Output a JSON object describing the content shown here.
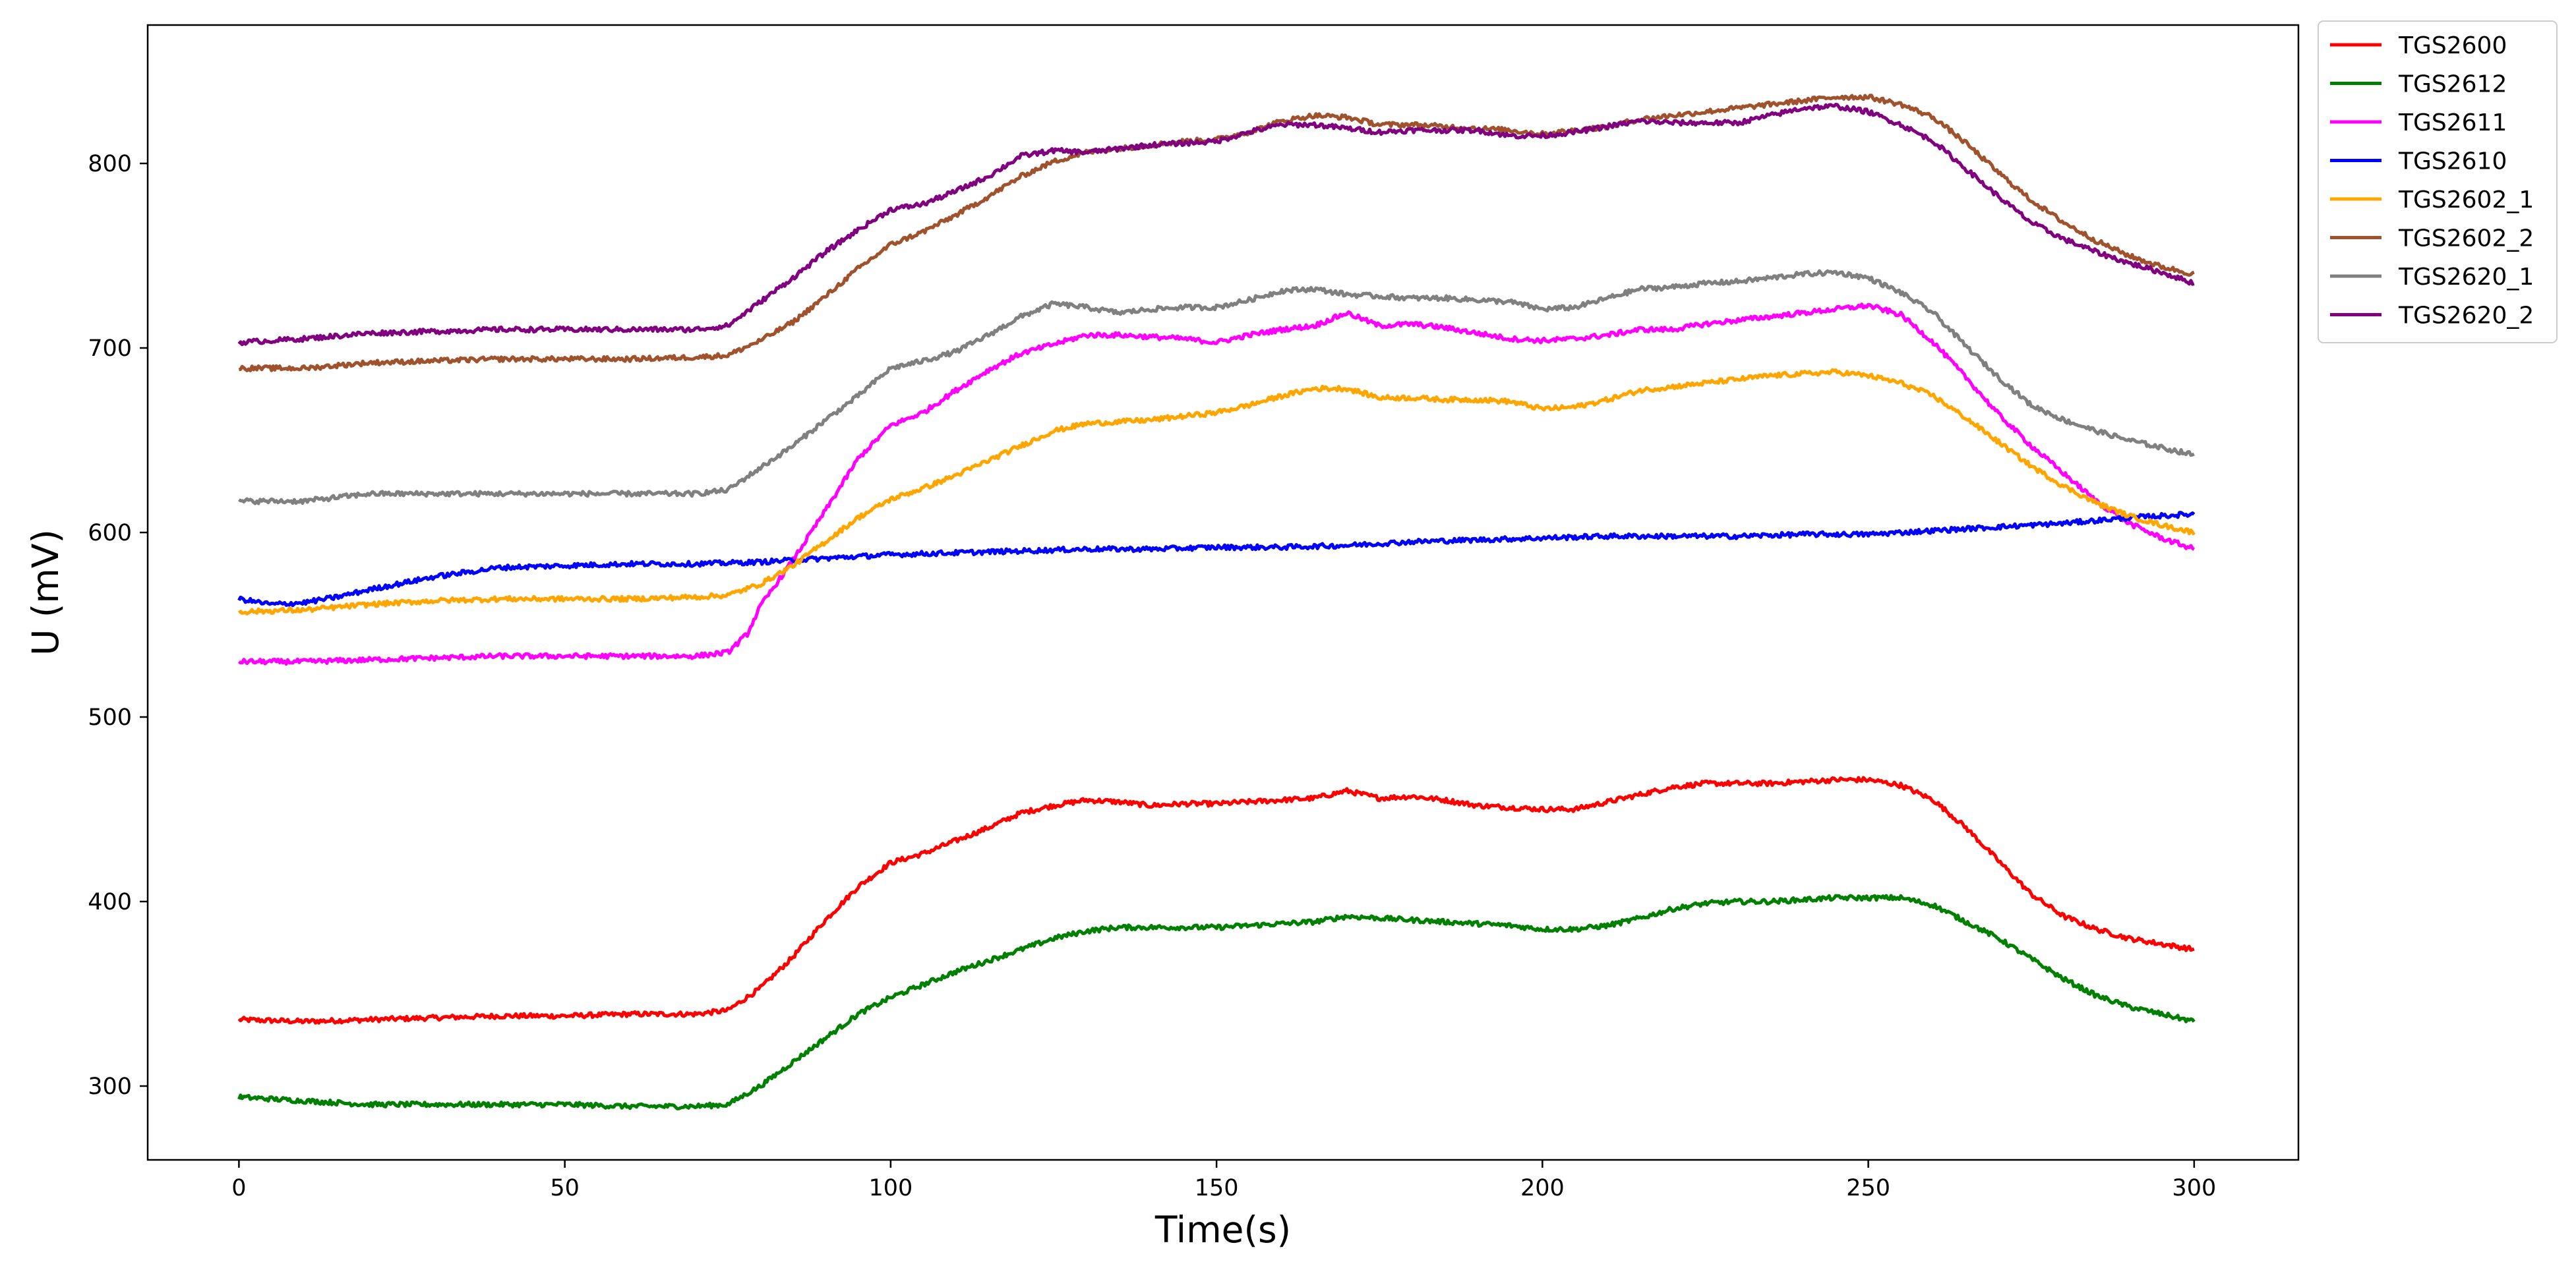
{
  "chart_data": {
    "type": "line",
    "title": "",
    "xlabel": "Time(s)",
    "ylabel": "U (mV)",
    "xlim": [
      -14,
      316
    ],
    "ylim": [
      260,
      875
    ],
    "xticks": [
      0,
      50,
      100,
      150,
      200,
      250,
      300
    ],
    "yticks": [
      300,
      400,
      500,
      600,
      700,
      800
    ],
    "grid": false,
    "legend_position": "outside-top-right",
    "series": [
      {
        "name": "TGS2600",
        "color": "#ff0000",
        "x": [
          0,
          10,
          20,
          30,
          40,
          50,
          60,
          70,
          75,
          80,
          85,
          90,
          95,
          100,
          105,
          110,
          115,
          120,
          125,
          130,
          135,
          140,
          145,
          150,
          155,
          160,
          165,
          170,
          175,
          180,
          185,
          190,
          195,
          200,
          205,
          210,
          215,
          220,
          225,
          230,
          235,
          240,
          245,
          250,
          255,
          260,
          265,
          270,
          275,
          280,
          285,
          290,
          295,
          300
        ],
        "y": [
          336,
          335,
          336,
          337,
          338,
          338,
          339,
          339,
          341,
          353,
          370,
          390,
          408,
          421,
          426,
          433,
          440,
          448,
          452,
          455,
          454,
          452,
          453,
          453,
          454,
          455,
          456,
          460,
          456,
          457,
          455,
          452,
          451,
          450,
          450,
          454,
          458,
          462,
          464,
          464,
          464,
          465,
          466,
          466,
          463,
          455,
          440,
          422,
          404,
          392,
          385,
          380,
          377,
          374
        ]
      },
      {
        "name": "TGS2612",
        "color": "#008000",
        "x": [
          0,
          10,
          20,
          30,
          40,
          50,
          60,
          70,
          75,
          80,
          85,
          90,
          95,
          100,
          105,
          110,
          115,
          120,
          125,
          130,
          135,
          140,
          145,
          150,
          155,
          160,
          165,
          170,
          175,
          180,
          185,
          190,
          195,
          200,
          205,
          210,
          215,
          220,
          225,
          230,
          235,
          240,
          245,
          250,
          255,
          260,
          265,
          270,
          275,
          280,
          285,
          290,
          295,
          300
        ],
        "y": [
          294,
          292,
          290,
          290,
          290,
          290,
          289,
          289,
          290,
          300,
          313,
          326,
          339,
          348,
          355,
          362,
          368,
          374,
          380,
          384,
          386,
          386,
          386,
          386,
          387,
          388,
          389,
          392,
          391,
          390,
          389,
          388,
          387,
          385,
          385,
          387,
          391,
          396,
          399,
          400,
          400,
          401,
          402,
          402,
          402,
          398,
          389,
          380,
          369,
          358,
          349,
          343,
          339,
          335
        ]
      },
      {
        "name": "TGS2611",
        "color": "#ff00ff",
        "x": [
          0,
          10,
          20,
          30,
          40,
          50,
          60,
          70,
          75,
          78,
          80,
          85,
          90,
          95,
          100,
          105,
          110,
          115,
          120,
          125,
          130,
          135,
          140,
          145,
          150,
          155,
          160,
          165,
          170,
          175,
          180,
          185,
          190,
          195,
          200,
          205,
          210,
          215,
          220,
          225,
          230,
          235,
          240,
          245,
          250,
          255,
          260,
          265,
          270,
          275,
          280,
          285,
          290,
          295,
          300
        ],
        "y": [
          530,
          530,
          531,
          532,
          533,
          533,
          533,
          533,
          535,
          545,
          560,
          585,
          612,
          640,
          658,
          665,
          677,
          688,
          697,
          702,
          707,
          707,
          706,
          705,
          703,
          707,
          710,
          712,
          719,
          712,
          713,
          711,
          708,
          705,
          704,
          705,
          707,
          710,
          710,
          713,
          715,
          717,
          719,
          721,
          723,
          718,
          703,
          684,
          664,
          647,
          632,
          617,
          605,
          597,
          591
        ]
      },
      {
        "name": "TGS2610",
        "color": "#0000ff",
        "x": [
          0,
          5,
          10,
          15,
          20,
          30,
          40,
          50,
          60,
          70,
          80,
          90,
          100,
          110,
          120,
          130,
          140,
          150,
          160,
          170,
          180,
          190,
          200,
          210,
          220,
          230,
          240,
          250,
          260,
          270,
          280,
          290,
          300
        ],
        "y": [
          564,
          561,
          562,
          565,
          569,
          576,
          581,
          582,
          583,
          583,
          584,
          586,
          588,
          589,
          590,
          591,
          591,
          592,
          592,
          593,
          595,
          596,
          597,
          598,
          598,
          598,
          599,
          599,
          601,
          603,
          605,
          608,
          610
        ]
      },
      {
        "name": "TGS2602_1",
        "color": "#ffa500",
        "x": [
          0,
          10,
          20,
          30,
          40,
          50,
          60,
          70,
          75,
          80,
          85,
          90,
          95,
          100,
          105,
          110,
          115,
          120,
          125,
          130,
          135,
          140,
          145,
          150,
          155,
          160,
          165,
          170,
          175,
          180,
          185,
          190,
          195,
          200,
          205,
          210,
          215,
          220,
          225,
          230,
          235,
          240,
          245,
          250,
          255,
          260,
          265,
          270,
          275,
          280,
          285,
          290,
          295,
          300
        ],
        "y": [
          557,
          558,
          561,
          563,
          564,
          564,
          564,
          565,
          566,
          572,
          582,
          595,
          608,
          618,
          624,
          631,
          639,
          647,
          655,
          659,
          660,
          661,
          663,
          665,
          669,
          674,
          678,
          678,
          673,
          673,
          672,
          672,
          671,
          667,
          668,
          672,
          677,
          679,
          681,
          683,
          685,
          686,
          687,
          685,
          681,
          674,
          662,
          649,
          636,
          625,
          616,
          609,
          604,
          600
        ]
      },
      {
        "name": "TGS2602_2",
        "color": "#a0522d",
        "x": [
          0,
          10,
          20,
          30,
          40,
          50,
          60,
          70,
          75,
          80,
          85,
          90,
          95,
          100,
          105,
          110,
          115,
          120,
          125,
          130,
          135,
          140,
          145,
          150,
          155,
          160,
          165,
          170,
          175,
          180,
          185,
          190,
          195,
          200,
          205,
          210,
          215,
          220,
          225,
          230,
          235,
          240,
          245,
          250,
          255,
          260,
          265,
          270,
          275,
          280,
          285,
          290,
          295,
          300
        ],
        "y": [
          689,
          689,
          692,
          693,
          694,
          694,
          694,
          695,
          696,
          704,
          714,
          728,
          743,
          756,
          763,
          772,
          782,
          793,
          801,
          806,
          808,
          810,
          812,
          813,
          817,
          823,
          826,
          825,
          821,
          821,
          820,
          819,
          818,
          816,
          818,
          820,
          824,
          826,
          828,
          830,
          832,
          834,
          836,
          836,
          832,
          825,
          811,
          795,
          780,
          768,
          758,
          750,
          744,
          740
        ]
      },
      {
        "name": "TGS2620_1",
        "color": "#808080",
        "x": [
          0,
          10,
          20,
          30,
          40,
          50,
          60,
          70,
          75,
          80,
          85,
          90,
          95,
          100,
          105,
          110,
          115,
          120,
          125,
          130,
          135,
          140,
          145,
          150,
          155,
          160,
          165,
          170,
          175,
          180,
          185,
          190,
          195,
          200,
          205,
          210,
          215,
          220,
          225,
          230,
          235,
          240,
          245,
          250,
          255,
          260,
          265,
          270,
          275,
          280,
          285,
          290,
          295,
          300
        ],
        "y": [
          617,
          617,
          621,
          621,
          621,
          621,
          621,
          621,
          623,
          635,
          647,
          661,
          674,
          689,
          693,
          698,
          707,
          717,
          724,
          722,
          719,
          721,
          722,
          722,
          726,
          731,
          732,
          729,
          728,
          727,
          727,
          726,
          725,
          721,
          722,
          727,
          732,
          733,
          735,
          736,
          738,
          740,
          741,
          738,
          730,
          719,
          701,
          684,
          669,
          661,
          655,
          650,
          646,
          642
        ]
      },
      {
        "name": "TGS2620_2",
        "color": "#800080",
        "x": [
          0,
          10,
          20,
          30,
          40,
          50,
          60,
          70,
          75,
          80,
          85,
          90,
          95,
          100,
          105,
          110,
          115,
          120,
          125,
          130,
          135,
          140,
          145,
          150,
          155,
          160,
          165,
          170,
          175,
          180,
          185,
          190,
          195,
          200,
          205,
          210,
          215,
          220,
          225,
          230,
          235,
          240,
          245,
          250,
          255,
          260,
          265,
          270,
          275,
          280,
          285,
          290,
          295,
          300
        ],
        "y": [
          703,
          705,
          708,
          709,
          710,
          710,
          710,
          710,
          712,
          725,
          738,
          752,
          764,
          775,
          778,
          785,
          793,
          804,
          807,
          806,
          808,
          810,
          811,
          812,
          817,
          821,
          821,
          819,
          817,
          818,
          818,
          818,
          815,
          815,
          817,
          820,
          823,
          822,
          822,
          822,
          826,
          830,
          831,
          828,
          821,
          812,
          797,
          782,
          768,
          759,
          752,
          746,
          741,
          735
        ]
      }
    ]
  }
}
